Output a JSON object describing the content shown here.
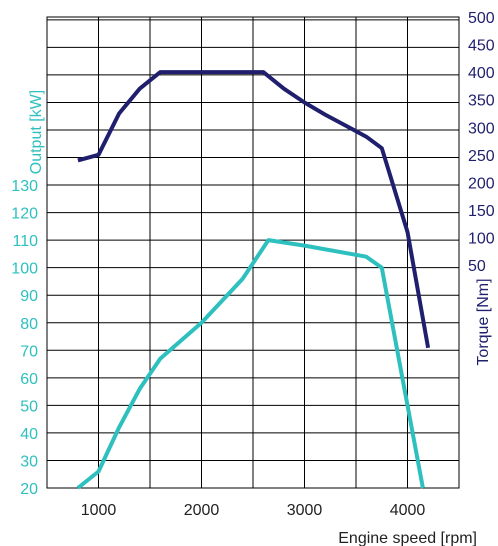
{
  "chart_data": {
    "type": "line",
    "title": "",
    "xlabel": "Engine speed [rpm]",
    "ylabel_left": "Output [kW]",
    "ylabel_right": "Torque [Nm]",
    "x_range": [
      500,
      4500
    ],
    "x_ticks": [
      1000,
      2000,
      3000,
      4000
    ],
    "left_ticks": [
      20,
      30,
      40,
      50,
      60,
      70,
      80,
      90,
      100,
      110,
      120,
      130
    ],
    "right_ticks": [
      50,
      100,
      150,
      200,
      250,
      300,
      350,
      400,
      450,
      500
    ],
    "grid": true,
    "colors": {
      "output": "#2ebfbf",
      "torque": "#1f1f6e",
      "grid": "#000000"
    },
    "series": [
      {
        "axis": "left",
        "x": [
          800,
          1000,
          1200,
          1400,
          1600,
          2000,
          2400,
          2650,
          3000,
          3600,
          3750,
          4000,
          4150
        ],
        "values": [
          20,
          26,
          42,
          56,
          67,
          80,
          96,
          110,
          108,
          104,
          100,
          50,
          20
        ]
      },
      {
        "axis": "right",
        "x": [
          800,
          1000,
          1200,
          1400,
          1600,
          2000,
          2400,
          2600,
          2800,
          3000,
          3200,
          3400,
          3600,
          3750,
          4000,
          4200
        ],
        "values": [
          240,
          250,
          325,
          370,
          400,
          400,
          400,
          400,
          370,
          345,
          323,
          303,
          283,
          262,
          110,
          -100
        ]
      }
    ]
  }
}
